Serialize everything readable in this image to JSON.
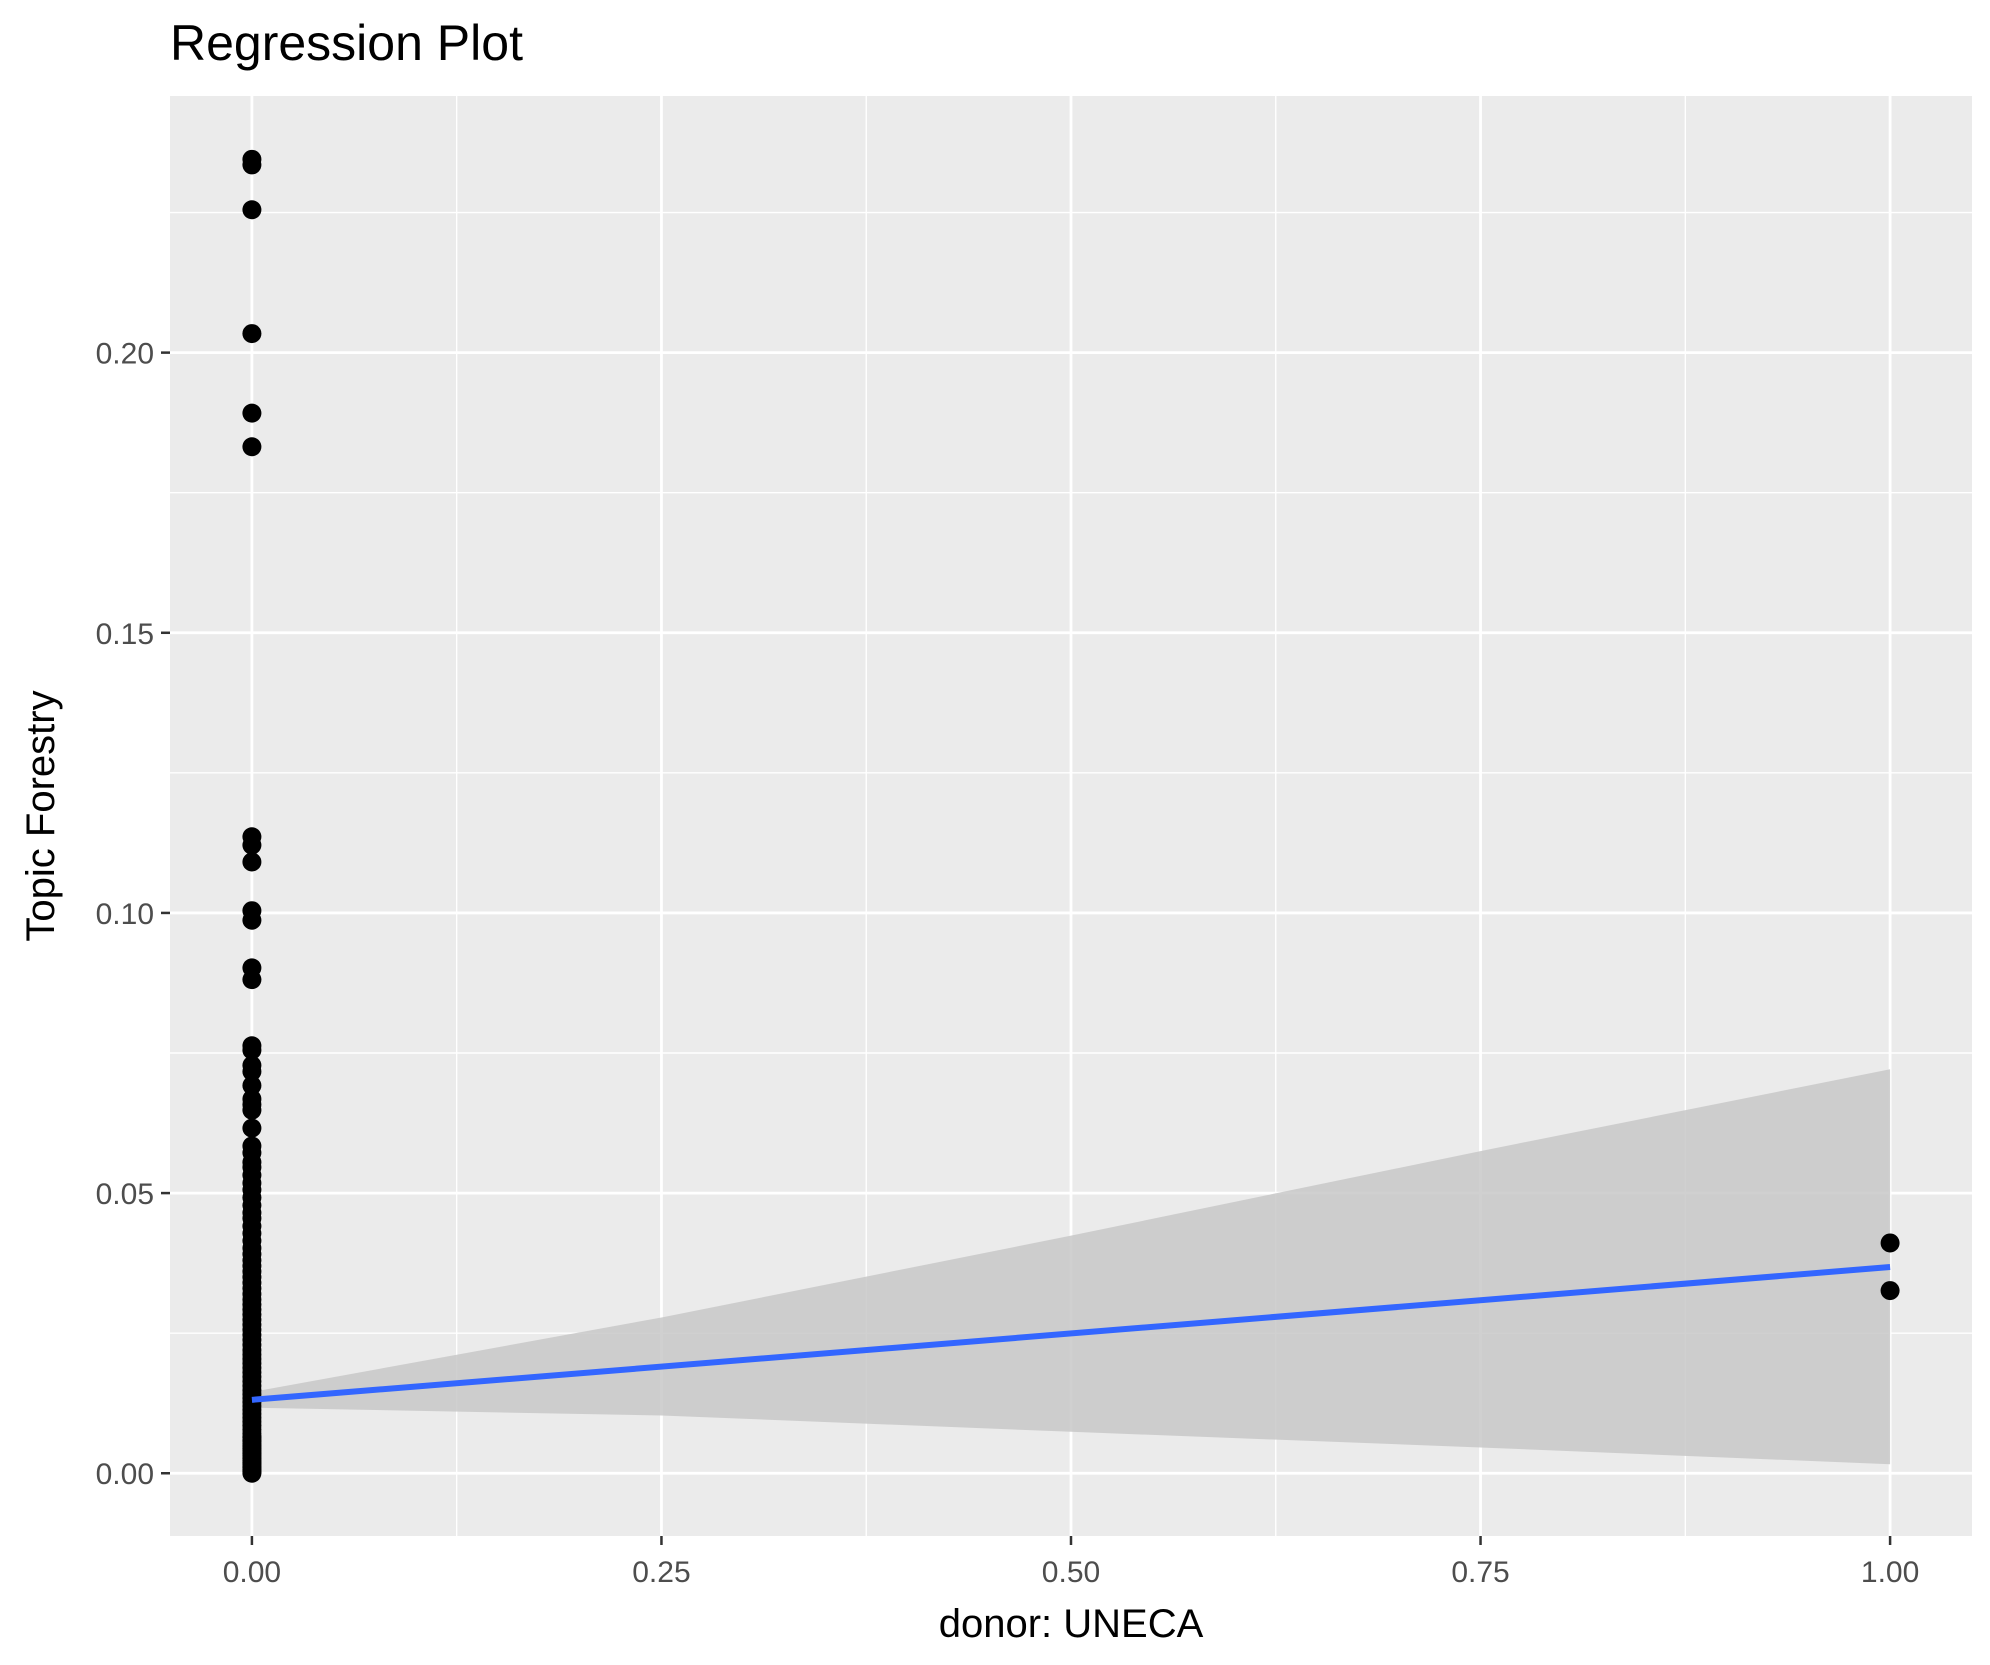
{
  "chart_data": {
    "type": "scatter",
    "title": "Regression Plot",
    "xlabel": "donor: UNECA",
    "ylabel": "Topic Forestry",
    "xlim": [
      -0.05,
      1.05
    ],
    "ylim": [
      -0.0112,
      0.2458
    ],
    "x_ticks": [
      0.0,
      0.25,
      0.5,
      0.75,
      1.0
    ],
    "x_tick_labels": [
      "0.00",
      "0.25",
      "0.50",
      "0.75",
      "1.00"
    ],
    "y_ticks": [
      0.0,
      0.05,
      0.1,
      0.15,
      0.2
    ],
    "y_tick_labels": [
      "0.00",
      "0.05",
      "0.10",
      "0.15",
      "0.20"
    ],
    "grid": true,
    "colors": {
      "panel": "#EBEBEB",
      "grid": "#FFFFFF",
      "points": "#000000",
      "fit_line": "#3366FF",
      "ribbon": "#C8C8C8"
    },
    "points": {
      "x": [
        0,
        0,
        0,
        0,
        0,
        0,
        0,
        0,
        0,
        0,
        0,
        0,
        0,
        0,
        0,
        0,
        0,
        0,
        0,
        0,
        0,
        0,
        0,
        0,
        0,
        0,
        0,
        0,
        0,
        0,
        0,
        0,
        0,
        0,
        0,
        0,
        0,
        0,
        0,
        0,
        0,
        0,
        0,
        0,
        0,
        0,
        0,
        0,
        0,
        0,
        0,
        0,
        0,
        0,
        0,
        0,
        0,
        0,
        0,
        0,
        0,
        0,
        0,
        0,
        0,
        0,
        0,
        0,
        0,
        0,
        0,
        0,
        0,
        0,
        0,
        0,
        0,
        0,
        0,
        0,
        0,
        0,
        0,
        0,
        0,
        0,
        0,
        0,
        0,
        0,
        0,
        0,
        0,
        0,
        0,
        0,
        0,
        0,
        0,
        0,
        1,
        1
      ],
      "y": [
        0.2345,
        0.2335,
        0.2255,
        0.2034,
        0.1892,
        0.1832,
        0.1136,
        0.1121,
        0.1091,
        0.1004,
        0.0987,
        0.0902,
        0.0881,
        0.0763,
        0.0755,
        0.0728,
        0.0717,
        0.0692,
        0.0668,
        0.0658,
        0.0648,
        0.0616,
        0.0584,
        0.0572,
        0.0555,
        0.0546,
        0.0532,
        0.0518,
        0.0506,
        0.0492,
        0.0478,
        0.0465,
        0.0455,
        0.0441,
        0.0428,
        0.0415,
        0.0402,
        0.0391,
        0.038,
        0.037,
        0.036,
        0.035,
        0.034,
        0.033,
        0.032,
        0.031,
        0.0301,
        0.0292,
        0.0283,
        0.0274,
        0.0265,
        0.0256,
        0.0247,
        0.0238,
        0.0229,
        0.022,
        0.0212,
        0.0204,
        0.0196,
        0.0188,
        0.018,
        0.0172,
        0.0164,
        0.0156,
        0.0148,
        0.0141,
        0.0134,
        0.0127,
        0.012,
        0.0113,
        0.0106,
        0.0099,
        0.0092,
        0.0085,
        0.0078,
        0.0071,
        0.0064,
        0.0057,
        0.005,
        0.0044,
        0.0038,
        0.0032,
        0.0026,
        0.002,
        0.0015,
        0.001,
        0.0005,
        0.0,
        0.0003,
        0.0007,
        0.0012,
        0.0018,
        0.0023,
        0.0029,
        0.0035,
        0.0041,
        0.0047,
        0.0053,
        0.0059,
        0.0065,
        0.0411,
        0.0326
      ]
    },
    "fit": {
      "x": [
        0,
        1
      ],
      "y": [
        0.0131,
        0.0368
      ]
    },
    "confidence_band": {
      "x": [
        0,
        0.25,
        0.5,
        0.75,
        1.0
      ],
      "lower": [
        0.0117,
        0.0103,
        0.0074,
        0.0046,
        0.0016
      ],
      "upper": [
        0.0145,
        0.0278,
        0.0424,
        0.0575,
        0.0721
      ]
    }
  }
}
